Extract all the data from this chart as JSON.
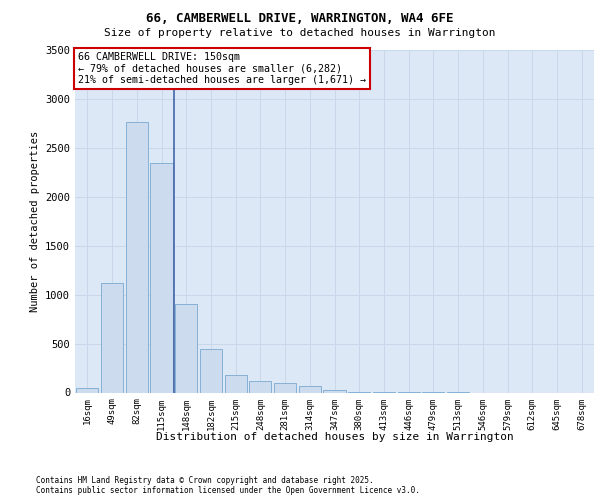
{
  "title_line1": "66, CAMBERWELL DRIVE, WARRINGTON, WA4 6FE",
  "title_line2": "Size of property relative to detached houses in Warrington",
  "xlabel": "Distribution of detached houses by size in Warrington",
  "ylabel": "Number of detached properties",
  "categories": [
    "16sqm",
    "49sqm",
    "82sqm",
    "115sqm",
    "148sqm",
    "182sqm",
    "215sqm",
    "248sqm",
    "281sqm",
    "314sqm",
    "347sqm",
    "380sqm",
    "413sqm",
    "446sqm",
    "479sqm",
    "513sqm",
    "546sqm",
    "579sqm",
    "612sqm",
    "645sqm",
    "678sqm"
  ],
  "values": [
    50,
    1120,
    2760,
    2350,
    900,
    440,
    180,
    115,
    95,
    65,
    30,
    10,
    5,
    2,
    2,
    1,
    0,
    0,
    0,
    0,
    0
  ],
  "bar_color": "#ccdcee",
  "bar_edge_color": "#7aaad0",
  "grid_color": "#c8d8ea",
  "background_color": "#dce8f5",
  "vline_x": 3.5,
  "vline_color": "#4466aa",
  "annotation_title": "66 CAMBERWELL DRIVE: 150sqm",
  "annotation_line1": "← 79% of detached houses are smaller (6,282)",
  "annotation_line2": "21% of semi-detached houses are larger (1,671) →",
  "annotation_box_facecolor": "#ffffff",
  "annotation_box_edgecolor": "#cc0000",
  "ylim": [
    0,
    3500
  ],
  "yticks": [
    0,
    500,
    1000,
    1500,
    2000,
    2500,
    3000,
    3500
  ],
  "footnote1": "Contains HM Land Registry data © Crown copyright and database right 2025.",
  "footnote2": "Contains public sector information licensed under the Open Government Licence v3.0."
}
